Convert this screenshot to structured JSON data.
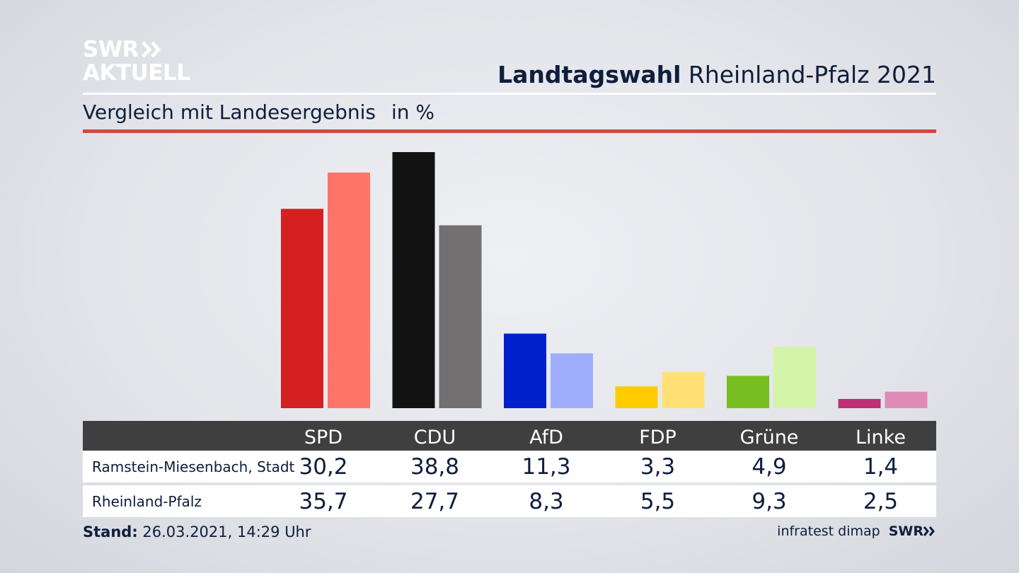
{
  "logo": {
    "line1": "SWR",
    "line2": "AKTUELL"
  },
  "header": {
    "title_bold": "Landtagswahl",
    "title_rest": "Rheinland-Pfalz 2021"
  },
  "subtitle": {
    "text": "Vergleich mit Landesergebnis",
    "unit": "in %"
  },
  "colors": {
    "accent_rule": "#d04a3c",
    "text": "#0f1e3c",
    "table_header": "#3f3f3f",
    "parties": {
      "SPD": [
        "#d42020",
        "#ff7468"
      ],
      "CDU": [
        "#121212",
        "#727070"
      ],
      "AfD": [
        "#0020cc",
        "#9eaefc"
      ],
      "FDP": [
        "#ffcc00",
        "#ffe173"
      ],
      "Grüne": [
        "#78be20",
        "#d3f5a8"
      ],
      "Linke": [
        "#be3075",
        "#e08ab8"
      ]
    }
  },
  "chart_data": {
    "type": "bar",
    "categories": [
      "SPD",
      "CDU",
      "AfD",
      "FDP",
      "Grüne",
      "Linke"
    ],
    "series": [
      {
        "name": "Ramstein-Miesenbach, Stadt",
        "values": [
          30.2,
          38.8,
          11.3,
          3.3,
          4.9,
          1.4
        ]
      },
      {
        "name": "Rheinland-Pfalz",
        "values": [
          35.7,
          27.7,
          8.3,
          5.5,
          9.3,
          2.5
        ]
      }
    ],
    "title": "Landtagswahl Rheinland-Pfalz 2021",
    "subtitle": "Vergleich mit Landesergebnis",
    "ylabel": "in %",
    "grid": false
  },
  "table": {
    "headers": [
      "SPD",
      "CDU",
      "AfD",
      "FDP",
      "Grüne",
      "Linke"
    ],
    "rows": [
      {
        "label": "Ramstein-Miesenbach, Stadt",
        "values": [
          "30,2",
          "38,8",
          "11,3",
          "3,3",
          "4,9",
          "1,4"
        ]
      },
      {
        "label": "Rheinland-Pfalz",
        "values": [
          "35,7",
          "27,7",
          "8,3",
          "5,5",
          "9,3",
          "2,5"
        ]
      }
    ]
  },
  "footer": {
    "stand_label": "Stand:",
    "stand_value": "26.03.2021, 14:29 Uhr",
    "source": "infratest dimap",
    "brand": "SWR"
  }
}
